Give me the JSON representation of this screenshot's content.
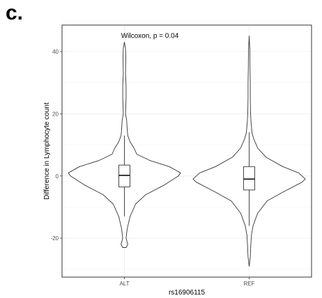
{
  "panel_label": "c.",
  "chart_data": {
    "type": "violin",
    "categories": [
      "ALT",
      "REF"
    ],
    "xlabel": "rs16906115",
    "ylabel": "Difference in Lymphocyte count",
    "ylim": [
      -32.5,
      48.5
    ],
    "yticks": [
      -20,
      0,
      20,
      40
    ],
    "grid": true,
    "annotation": "Wilcoxon, p = 0.04",
    "series": [
      {
        "category": "ALT",
        "min": -23,
        "max": 43,
        "whisker_low": -13,
        "q1": -3.5,
        "median": 0.2,
        "q3": 3.5,
        "whisker_high": 13,
        "density_profile": [
          [
            -23,
            0.03
          ],
          [
            -22,
            0.06
          ],
          [
            -20,
            0.03
          ],
          [
            -17,
            0.05
          ],
          [
            -13,
            0.1
          ],
          [
            -9,
            0.2
          ],
          [
            -6,
            0.38
          ],
          [
            -3,
            0.7
          ],
          [
            0,
            0.96
          ],
          [
            1,
            1.0
          ],
          [
            3,
            0.8
          ],
          [
            5,
            0.45
          ],
          [
            7,
            0.22
          ],
          [
            9,
            0.17
          ],
          [
            11,
            0.1
          ],
          [
            13,
            0.06
          ],
          [
            15,
            0.05
          ],
          [
            18,
            0.04
          ],
          [
            20,
            0.02
          ],
          [
            25,
            0.03
          ],
          [
            29,
            0.03
          ],
          [
            33,
            0.02
          ],
          [
            38,
            0.025
          ],
          [
            41,
            0.02
          ],
          [
            43,
            0.0
          ]
        ]
      },
      {
        "category": "REF",
        "min": -29,
        "max": 45,
        "whisker_low": -16,
        "q1": -4.5,
        "median": -1,
        "q3": 3,
        "whisker_high": 14,
        "density_profile": [
          [
            -29,
            0.0
          ],
          [
            -26,
            0.02
          ],
          [
            -22,
            0.03
          ],
          [
            -19,
            0.04
          ],
          [
            -16,
            0.07
          ],
          [
            -12,
            0.15
          ],
          [
            -8,
            0.32
          ],
          [
            -5,
            0.62
          ],
          [
            -2,
            0.94
          ],
          [
            -1,
            1.0
          ],
          [
            1,
            0.88
          ],
          [
            3,
            0.6
          ],
          [
            6,
            0.3
          ],
          [
            9,
            0.15
          ],
          [
            12,
            0.08
          ],
          [
            14,
            0.05
          ],
          [
            17,
            0.035
          ],
          [
            20,
            0.025
          ],
          [
            25,
            0.02
          ],
          [
            30,
            0.02
          ],
          [
            35,
            0.015
          ],
          [
            40,
            0.012
          ],
          [
            45,
            0.0
          ]
        ]
      }
    ]
  }
}
